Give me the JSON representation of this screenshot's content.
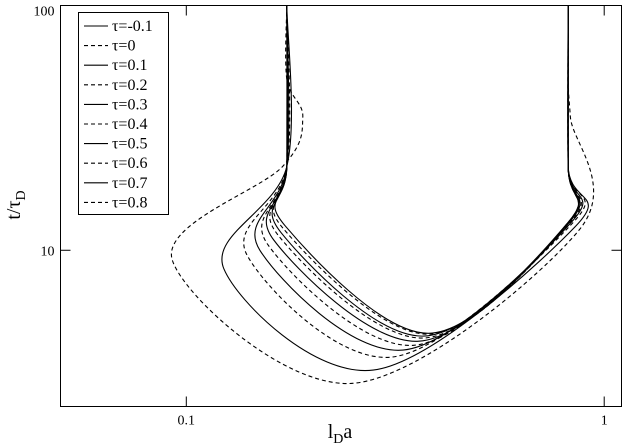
{
  "chart_data": {
    "type": "line",
    "log_x": true,
    "log_y": true,
    "xlabel": [
      "l",
      "D",
      "a"
    ],
    "ylabel": [
      "t/τ",
      "D"
    ],
    "xlim": [
      0.05,
      1.1
    ],
    "ylim": [
      2.3,
      100
    ],
    "xticks": [
      0.1,
      1
    ],
    "yticks": [
      10,
      100
    ],
    "legend": "upper left",
    "series": [
      {
        "name": "τ=-0.1",
        "color": "#000000",
        "dashed": false,
        "x": [
          0.174,
          0.174,
          0.1723,
          0.38,
          0.82,
          0.82,
          0.82
        ],
        "y": [
          100,
          22,
          12.6,
          4.58,
          13,
          22,
          100
        ]
      },
      {
        "name": "τ=0",
        "color": "#000000",
        "dashed": true,
        "x": [
          0.174,
          0.174,
          0.1704,
          0.38,
          0.82,
          0.82,
          0.82
        ],
        "y": [
          100,
          22,
          12.3,
          4.54,
          13,
          22,
          100
        ]
      },
      {
        "name": "τ=0.1",
        "color": "#000000",
        "dashed": false,
        "x": [
          0.174,
          0.174,
          0.1686,
          0.37,
          0.82,
          0.82,
          0.82
        ],
        "y": [
          100,
          22,
          11.8,
          4.46,
          13,
          22,
          100
        ]
      },
      {
        "name": "τ=0.2",
        "color": "#000000",
        "dashed": true,
        "x": [
          0.174,
          0.174,
          0.166,
          0.37,
          0.825,
          0.82,
          0.82
        ],
        "y": [
          100,
          22,
          11.5,
          4.38,
          13,
          22,
          100
        ]
      },
      {
        "name": "τ=0.3",
        "color": "#000000",
        "dashed": false,
        "x": [
          0.174,
          0.174,
          0.162,
          0.36,
          0.825,
          0.82,
          0.82
        ],
        "y": [
          100,
          22,
          11.0,
          4.25,
          13,
          22,
          100
        ]
      },
      {
        "name": "τ=0.4",
        "color": "#000000",
        "dashed": true,
        "x": [
          0.174,
          0.174,
          0.157,
          0.35,
          0.83,
          0.82,
          0.82
        ],
        "y": [
          100,
          22,
          10.5,
          4.09,
          13,
          22,
          100
        ]
      },
      {
        "name": "τ=0.5",
        "color": "#000000",
        "dashed": false,
        "x": [
          0.174,
          0.174,
          0.15,
          0.33,
          0.834,
          0.82,
          0.82
        ],
        "y": [
          100,
          22,
          10,
          3.91,
          13,
          22,
          100
        ]
      },
      {
        "name": "τ=0.6",
        "color": "#000000",
        "dashed": true,
        "x": [
          0.174,
          0.174,
          0.14,
          0.31,
          0.843,
          0.82,
          0.82
        ],
        "y": [
          100,
          22,
          9.5,
          3.66,
          13,
          22,
          100
        ]
      },
      {
        "name": "τ=0.7",
        "color": "#000000",
        "dashed": false,
        "x": [
          0.174,
          0.174,
          0.123,
          0.28,
          0.853,
          0.82,
          0.82
        ],
        "y": [
          100,
          22,
          8.4,
          3.24,
          12.5,
          22,
          100
        ]
      },
      {
        "name": "τ=0.8",
        "color": "#000000",
        "dashed": true,
        "x": [
          0.174,
          0.174,
          0.19,
          0.17,
          0.0926,
          0.25,
          0.871,
          0.83,
          0.82,
          0.82
        ],
        "y": [
          100,
          50,
          35,
          22,
          9.1,
          2.86,
          12.1,
          35,
          50,
          100
        ]
      }
    ]
  }
}
